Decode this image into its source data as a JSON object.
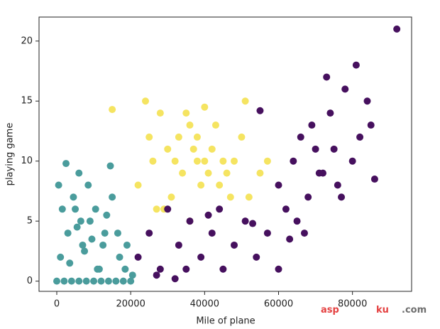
{
  "chart_data": {
    "type": "scatter",
    "x_label": "Mile of plane",
    "y_label": "playing game",
    "xlim": [
      -4800,
      96000
    ],
    "ylim": [
      -0.85,
      22
    ],
    "xticks": [
      0,
      20000,
      40000,
      60000,
      80000
    ],
    "yticks": [
      0,
      5,
      10,
      15,
      20
    ],
    "series": [
      {
        "color": "#4a9c9c",
        "x": [
          0,
          2000,
          4000,
          6000,
          8000,
          10000,
          12000,
          14000,
          16000,
          18000,
          20000,
          1000,
          3000,
          5000,
          7000,
          9000,
          11000,
          13000,
          15000,
          17000,
          19000,
          500,
          2500,
          4500,
          6500,
          8500,
          10500,
          12500,
          14500,
          16500,
          3500,
          7500,
          11500,
          13500,
          9500,
          5500,
          1500,
          18500,
          20500,
          6000
        ],
        "values": [
          0,
          0,
          0,
          0,
          0,
          0,
          0,
          0,
          0,
          0,
          0,
          2,
          4,
          6,
          3,
          5,
          1,
          4,
          7,
          2,
          3,
          8,
          9.8,
          7,
          5,
          8,
          6,
          3,
          9.6,
          4,
          1.5,
          2.5,
          1,
          5.5,
          3.5,
          4.5,
          6,
          1,
          0.5,
          9
        ]
      },
      {
        "color": "#f5e461",
        "x": [
          22000,
          25000,
          28000,
          30000,
          32000,
          34000,
          36000,
          38000,
          40000,
          42000,
          44000,
          46000,
          48000,
          50000,
          52000,
          55000,
          57000,
          24000,
          27000,
          31000,
          33000,
          35000,
          37000,
          39000,
          41000,
          43000,
          45000,
          29000,
          36000,
          40000,
          15000,
          51000,
          26000,
          47000,
          38000
        ],
        "values": [
          8,
          12,
          14,
          11,
          10,
          9,
          13,
          12,
          10,
          11,
          8,
          9,
          10,
          12,
          7,
          9,
          10,
          15,
          6,
          7,
          12,
          14,
          11,
          8,
          9,
          13,
          10,
          6,
          5,
          14.5,
          14.3,
          15,
          10,
          7,
          10
        ]
      },
      {
        "color": "#46105e",
        "x": [
          22000,
          25000,
          28000,
          30000,
          33000,
          36000,
          39000,
          42000,
          45000,
          48000,
          51000,
          54000,
          57000,
          60000,
          27000,
          35000,
          44000,
          53000,
          32000,
          41000,
          60000,
          62000,
          64000,
          66000,
          68000,
          70000,
          72000,
          74000,
          76000,
          78000,
          80000,
          82000,
          84000,
          86000,
          65000,
          69000,
          73000,
          77000,
          81000,
          71000,
          67000,
          75000,
          85000,
          63000,
          55000,
          92000
        ],
        "values": [
          2,
          4,
          1,
          6,
          3,
          5,
          2,
          4,
          1,
          3,
          5,
          2,
          4,
          1,
          0.5,
          1,
          6,
          4.8,
          0.2,
          5.5,
          8,
          6,
          10,
          12,
          7,
          11,
          9,
          14,
          8,
          16,
          10,
          12,
          15,
          8.5,
          5,
          13,
          17,
          7,
          18,
          9,
          4,
          11,
          13,
          3.5,
          14.2,
          21
        ]
      }
    ]
  },
  "watermark": {
    "parts": [
      "asp",
      "ku",
      ".com"
    ]
  }
}
